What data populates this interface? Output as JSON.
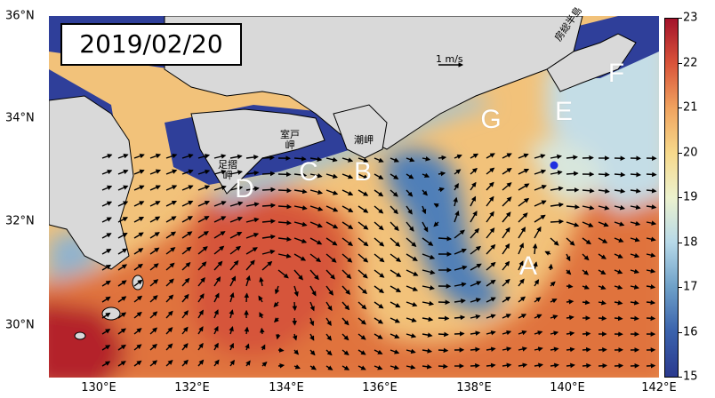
{
  "date_label": "2019/02/20",
  "scale_arrow_label": "1 m/s",
  "x_ticks": [
    "130°E",
    "132°E",
    "134°E",
    "136°E",
    "138°E",
    "140°E",
    "142°E"
  ],
  "y_ticks": [
    "36°N",
    "34°N",
    "32°N",
    "30°N"
  ],
  "colorbar": {
    "ticks": [
      "23",
      "22",
      "21",
      "20",
      "19",
      "18",
      "17",
      "16",
      "15"
    ],
    "min": 15,
    "max": 23,
    "colors": [
      "#2b3a8f",
      "#3a62ac",
      "#6ea0c8",
      "#b7d9e8",
      "#ecf2ce",
      "#f7d98b",
      "#f0a35f",
      "#d9543a",
      "#a3122a"
    ]
  },
  "region_labels": [
    "A",
    "B",
    "C",
    "D",
    "E",
    "F",
    "G"
  ],
  "place_names": {
    "ashizuri": "足摺\n岬",
    "muroto": "室戸\n岬",
    "shionomisaki": "潮岬",
    "boso": "房総半島"
  },
  "colors": {
    "land": "#d9d9d9",
    "coast_shelf": "#2f3f9a",
    "kuroshio": "#d9543a",
    "cold_eddy": "#5a8fc0"
  }
}
